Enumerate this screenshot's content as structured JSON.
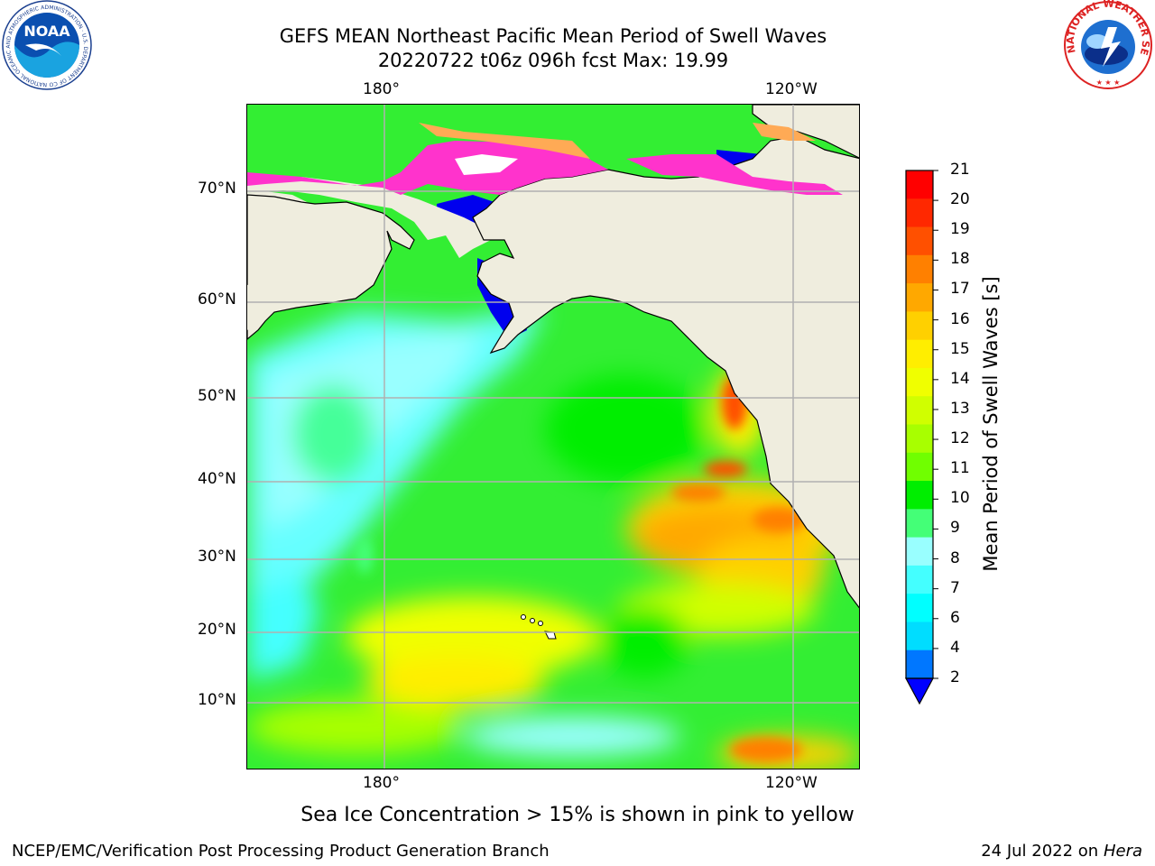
{
  "header": {
    "title_line1": "GEFS MEAN Northeast Pacific Mean Period of Swell Waves",
    "title_line2": "20220722 t06z 096h fcst   Max: 19.99"
  },
  "map": {
    "lon_labels_top": [
      "180°",
      "120°W"
    ],
    "lon_labels_bottom": [
      "180°",
      "120°W"
    ],
    "lat_labels": [
      "70°N",
      "60°N",
      "50°N",
      "40°N",
      "30°N",
      "20°N",
      "10°N"
    ],
    "colors": {
      "land": "#efedde",
      "coast": "#000000",
      "grid": "#b0b0b0",
      "ice_high": "#ff33cc",
      "ice_low": "#ffaa55"
    }
  },
  "colorbar": {
    "title": "Mean Period of Swell Waves [s]",
    "ticks": [
      "21",
      "20",
      "19",
      "18",
      "17",
      "16",
      "15",
      "14",
      "13",
      "12",
      "11",
      "10",
      "9",
      "8",
      "7",
      "6",
      "4",
      "2"
    ],
    "extend": "min",
    "colors": [
      "#ff0000",
      "#ff2800",
      "#ff5000",
      "#ff8000",
      "#ffa800",
      "#ffd000",
      "#ffee00",
      "#f0ff00",
      "#d0ff00",
      "#a8ff00",
      "#70ff00",
      "#00ee00",
      "#44ff77",
      "#99ffff",
      "#44ffff",
      "#00ffff",
      "#00ddff",
      "#0077ff"
    ],
    "under_color": "#0000ff"
  },
  "note": "Sea Ice Concentration > 15% is shown in pink to yellow",
  "footer": {
    "left": "NCEP/EMC/Verification Post Processing Product Generation Branch",
    "date": "24 Jul 2022 on ",
    "machine": "Hera"
  },
  "logos": {
    "noaa": "NOAA",
    "noaa_ring": "NATIONAL OCEANIC AND ATMOSPHERIC ADMINISTRATION · U.S. DEPARTMENT OF COMMERCE",
    "nws_ring": "NATIONAL WEATHER SERVICE"
  }
}
